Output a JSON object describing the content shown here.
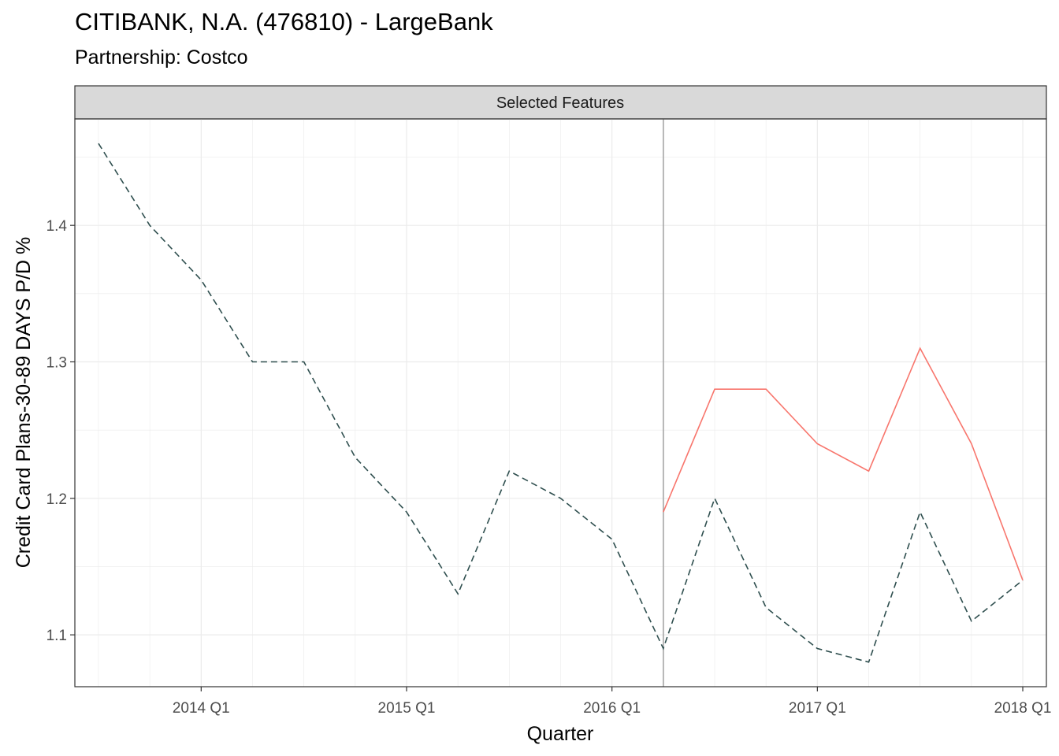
{
  "title": "CITIBANK, N.A. (476810) - LargeBank",
  "subtitle": "Partnership: Costco",
  "chart_data": {
    "type": "line",
    "facet_label": "Selected Features",
    "xlabel": "Quarter",
    "ylabel": "Credit Card Plans-30-89 DAYS P/D %",
    "x_tick_labels": [
      "2014 Q1",
      "2015 Q1",
      "2016 Q1",
      "2017 Q1",
      "2018 Q1"
    ],
    "y_tick_labels": [
      "1.1",
      "1.2",
      "1.3",
      "1.4"
    ],
    "x": [
      "2013 Q3",
      "2013 Q4",
      "2014 Q1",
      "2014 Q2",
      "2014 Q3",
      "2014 Q4",
      "2015 Q1",
      "2015 Q2",
      "2015 Q3",
      "2015 Q4",
      "2016 Q1",
      "2016 Q2",
      "2016 Q3",
      "2016 Q4",
      "2017 Q1",
      "2017 Q2",
      "2017 Q3",
      "2017 Q4",
      "2018 Q1"
    ],
    "ylim": [
      1.062,
      1.478
    ],
    "vline_x": "2016 Q2",
    "grid": true,
    "series": [
      {
        "style": "dashed",
        "color": "#2f4f4f",
        "values": [
          1.46,
          1.4,
          1.36,
          1.3,
          1.3,
          1.23,
          1.19,
          1.13,
          1.22,
          1.2,
          1.17,
          1.09,
          1.2,
          1.12,
          1.09,
          1.08,
          1.19,
          1.11,
          1.14
        ]
      },
      {
        "style": "solid",
        "color": "#f8766d",
        "values": [
          null,
          null,
          null,
          null,
          null,
          null,
          null,
          null,
          null,
          null,
          null,
          1.19,
          1.28,
          1.28,
          1.24,
          1.22,
          1.31,
          1.24,
          1.14
        ]
      }
    ]
  }
}
